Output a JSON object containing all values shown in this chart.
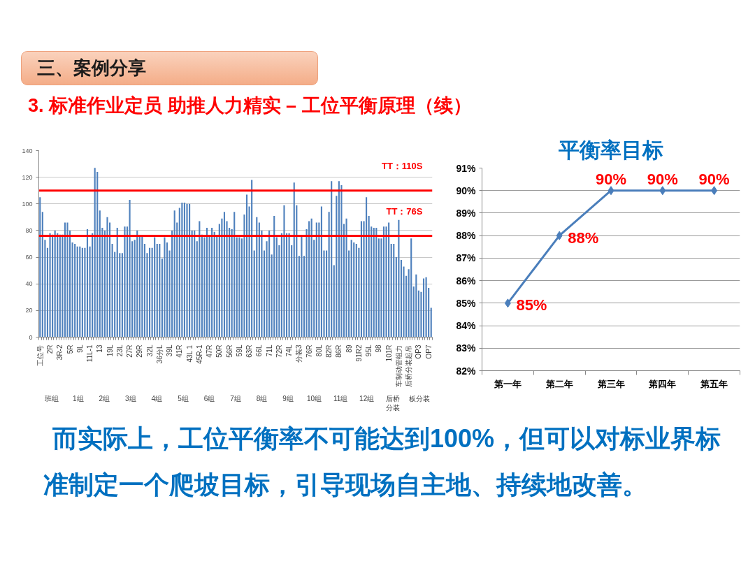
{
  "chart_data": [
    {
      "type": "bar",
      "title": "三、案例分享",
      "subtitle": "3. 标准作业定员 助推人力精实 – 工位平衡原理（续）",
      "categories": [
        "工位号",
        null,
        null,
        null,
        "2R",
        null,
        null,
        null,
        "3R-2",
        null,
        null,
        null,
        "5R",
        null,
        null,
        null,
        "9L",
        null,
        null,
        null,
        "11L-1",
        null,
        null,
        null,
        "13",
        null,
        null,
        null,
        "19L",
        null,
        null,
        null,
        "23L",
        null,
        null,
        null,
        "27R",
        null,
        null,
        null,
        "29R",
        null,
        null,
        null,
        "32L",
        null,
        null,
        null,
        "36分L",
        null,
        null,
        null,
        "39L",
        null,
        null,
        null,
        "41R",
        null,
        null,
        null,
        "43L 1",
        null,
        null,
        null,
        "45R-1",
        null,
        null,
        null,
        "47R",
        null,
        null,
        null,
        "50R",
        null,
        null,
        null,
        "56R",
        null,
        null,
        null,
        "59L",
        null,
        null,
        null,
        "63R",
        null,
        null,
        null,
        "66L",
        null,
        null,
        null,
        "71L",
        null,
        null,
        null,
        "72R",
        null,
        null,
        null,
        "74L",
        null,
        null,
        null,
        "分装3",
        null,
        null,
        null,
        "76R",
        null,
        null,
        null,
        "80L",
        null,
        null,
        null,
        "82R",
        null,
        null,
        null,
        "86R",
        null,
        null,
        null,
        "89",
        null,
        null,
        null,
        "91R2",
        null,
        null,
        null,
        "95L",
        null,
        null,
        null,
        "98",
        null,
        null,
        null,
        "101R",
        null,
        null,
        null,
        "车制动管组力",
        null,
        null,
        null,
        "后桥分装起吊",
        null,
        null,
        null,
        "OP3",
        null,
        null,
        null,
        "OP7",
        null
      ],
      "values": [
        105,
        94,
        73,
        67,
        78,
        77,
        80,
        78,
        77,
        77,
        86,
        86,
        80,
        71,
        70,
        68,
        68,
        67,
        67,
        81,
        68,
        78,
        127,
        124,
        95,
        82,
        80,
        90,
        86,
        70,
        64,
        82,
        63,
        63,
        83,
        83,
        103,
        72,
        73,
        80,
        76,
        76,
        70,
        63,
        67,
        67,
        75,
        70,
        70,
        59,
        75,
        71,
        65,
        80,
        95,
        86,
        97,
        101,
        101,
        100,
        100,
        80,
        80,
        72,
        87,
        77,
        75,
        82,
        76,
        82,
        79,
        76,
        85,
        89,
        94,
        87,
        82,
        81,
        94,
        75,
        75,
        74,
        92,
        107,
        98,
        118,
        65,
        90,
        86,
        80,
        65,
        72,
        80,
        62,
        91,
        75,
        69,
        78,
        99,
        78,
        78,
        69,
        116,
        99,
        61,
        76,
        61,
        81,
        87,
        89,
        73,
        86,
        86,
        98,
        65,
        65,
        94,
        117,
        54,
        106,
        117,
        114,
        85,
        89,
        65,
        73,
        71,
        70,
        67,
        87,
        87,
        105,
        91,
        83,
        82,
        82,
        74,
        74,
        83,
        83,
        86,
        70,
        70,
        60,
        88,
        58,
        53,
        46,
        51,
        74,
        38,
        47,
        35,
        34,
        44,
        45,
        37,
        22
      ],
      "color": "#4f81bd",
      "ylim": [
        0,
        140
      ],
      "yticks": [
        0,
        20,
        40,
        60,
        80,
        100,
        120,
        140
      ],
      "grid": "y",
      "ref_lines": [
        {
          "axis": "y",
          "value": 110,
          "label": "TT：110S",
          "color": "#ff0000"
        },
        {
          "axis": "y",
          "value": 76,
          "label": "TT：76S",
          "color": "#ff0000"
        }
      ],
      "annotations": [
        "班组",
        "1组",
        "2组",
        "3组",
        "4组",
        "5组",
        "6组",
        "7组",
        "8组",
        "9组",
        "10组",
        "11组",
        "12组",
        "后桥分装",
        "板分装"
      ]
    },
    {
      "type": "line",
      "title": "平衡率目标",
      "categories": [
        "第一年",
        "第二年",
        "第三年",
        "第四年",
        "第五年"
      ],
      "values": [
        85,
        88,
        90,
        90,
        90
      ],
      "color": "#4a7ebb",
      "marker": "diamond",
      "value_labels": [
        "85%",
        "88%",
        "90%",
        "90%",
        "90%"
      ],
      "ylim": [
        82,
        91
      ],
      "yticks": [
        {
          "value": 82,
          "label": "82%"
        },
        {
          "value": 83,
          "label": "83%"
        },
        {
          "value": 84,
          "label": "84%"
        },
        {
          "value": 85,
          "label": "85%"
        },
        {
          "value": 86,
          "label": "86%"
        },
        {
          "value": 87,
          "label": "87%"
        },
        {
          "value": 88,
          "label": "88%"
        },
        {
          "value": 89,
          "label": "89%"
        },
        {
          "value": 90,
          "label": "90%"
        },
        {
          "value": 91,
          "label": "91%"
        }
      ],
      "grid": "y",
      "annotations": [
        "而实际上，工位平衡率不可能达到100%，但可以对标业界标准制定一个爬坡目标，引导现场自主地、持续地改善。"
      ]
    }
  ]
}
